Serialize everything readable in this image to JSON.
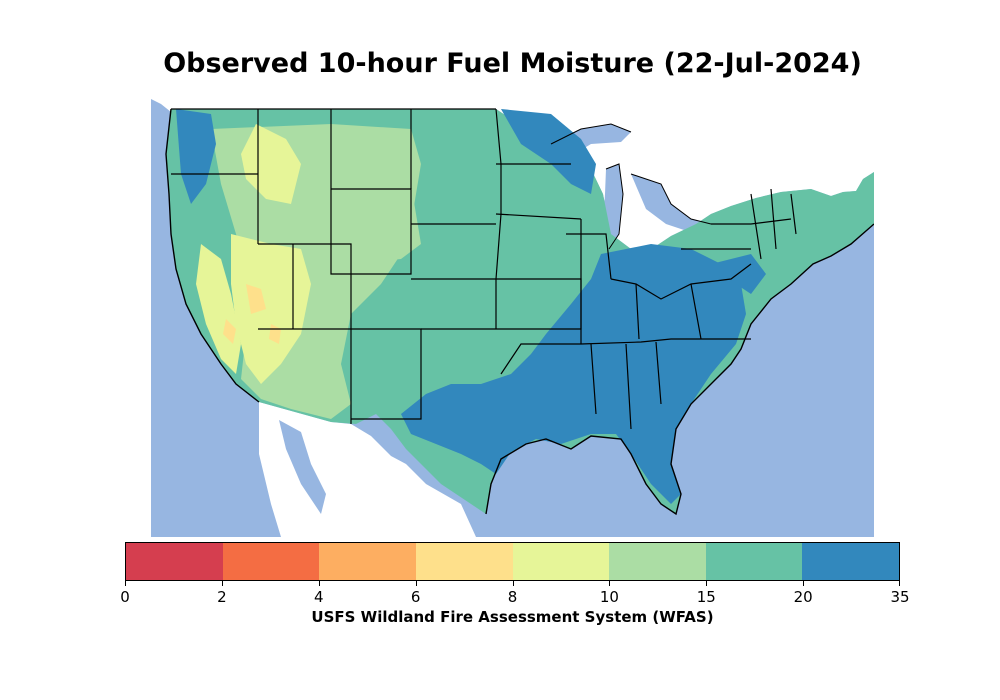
{
  "title": "Observed 10-hour Fuel Moisture (22-Jul-2024)",
  "colorbar": {
    "label": "USFS Wildland Fire Assessment System (WFAS)",
    "ticks": [
      "0",
      "2",
      "4",
      "6",
      "8",
      "10",
      "15",
      "20",
      "35"
    ],
    "bins": [
      {
        "range": "0-2",
        "color": "#d53e4f"
      },
      {
        "range": "2-4",
        "color": "#f46d43"
      },
      {
        "range": "4-6",
        "color": "#fdae61"
      },
      {
        "range": "6-8",
        "color": "#fee08b"
      },
      {
        "range": "8-10",
        "color": "#e6f598"
      },
      {
        "range": "10-15",
        "color": "#abdda4"
      },
      {
        "range": "15-20",
        "color": "#66c2a5"
      },
      {
        "range": "20-35",
        "color": "#3288bd"
      }
    ]
  },
  "map": {
    "region": "Contiguous United States",
    "ocean_color": "#97b6e1",
    "land_outside_color": "#ffffff"
  }
}
